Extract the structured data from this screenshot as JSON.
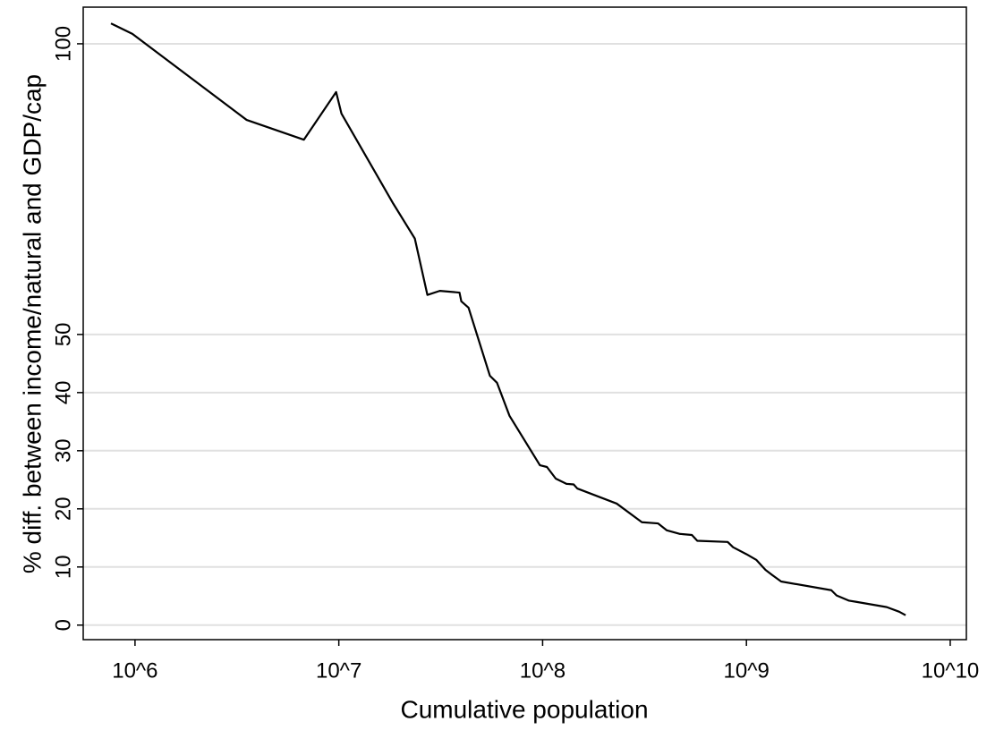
{
  "chart_data": {
    "type": "line",
    "x_label": "Cumulative population",
    "y_label": "% diff. between income/natural and GDP/cap",
    "log_x": true,
    "grid": true,
    "color": "#000000",
    "xlim": [
      557000,
      12000000000
    ],
    "ylim": [
      -2.5,
      106.3
    ],
    "xticks": [
      {
        "value": 1000000,
        "label": "10^6"
      },
      {
        "value": 10000000,
        "label": "10^7"
      },
      {
        "value": 100000000,
        "label": "10^8"
      },
      {
        "value": 1000000000,
        "label": "10^9"
      },
      {
        "value": 10000000000,
        "label": "10^10"
      }
    ],
    "yticks": [
      0,
      10,
      20,
      30,
      40,
      50,
      100
    ],
    "x": [
      762000,
      971000,
      3530000,
      6740000,
      9700000,
      10300000,
      18500000,
      23600000,
      27200000,
      31300000,
      39100000,
      39900000,
      43300000,
      55100000,
      59700000,
      68800000,
      97000000,
      105000000,
      116000000,
      131000000,
      142000000,
      148000000,
      231000000,
      307000000,
      368000000,
      407000000,
      469000000,
      540000000,
      574000000,
      809000000,
      860000000,
      1000000000,
      1120000000,
      1240000000,
      1340000000,
      1480000000,
      2610000000,
      2770000000,
      3190000000,
      3460000000,
      4880000000,
      5620000000,
      6040000000
    ],
    "values": [
      103.5,
      101.7,
      86.9,
      83.5,
      91.7,
      88.0,
      72.5,
      66.5,
      56.8,
      57.5,
      57.2,
      55.7,
      54.6,
      42.9,
      41.7,
      36.0,
      27.5,
      27.2,
      25.2,
      24.3,
      24.2,
      23.5,
      20.9,
      17.7,
      17.5,
      16.3,
      15.7,
      15.5,
      14.5,
      14.3,
      13.4,
      12.2,
      11.2,
      9.5,
      8.6,
      7.5,
      6.0,
      5.1,
      4.2,
      4.0,
      3.1,
      2.3,
      1.7
    ]
  }
}
